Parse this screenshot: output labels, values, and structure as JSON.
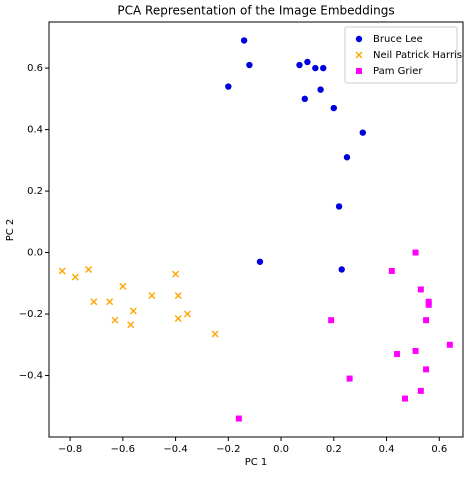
{
  "chart_data": {
    "type": "scatter",
    "title": "PCA Representation of the Image Embeddings",
    "x_label": "PC 1",
    "y_label": "PC 2",
    "xlim": [
      -0.88,
      0.69
    ],
    "ylim": [
      -0.6,
      0.75
    ],
    "xticks": [
      {
        "value": -0.8,
        "label": "−0.8"
      },
      {
        "value": -0.6,
        "label": "−0.6"
      },
      {
        "value": -0.4,
        "label": "−0.4"
      },
      {
        "value": -0.2,
        "label": "−0.2"
      },
      {
        "value": 0,
        "label": "0.0"
      },
      0.2,
      0.4,
      0.6
    ],
    "yticks": [
      {
        "value": -0.4,
        "label": "−0.4"
      },
      {
        "value": -0.2,
        "label": "−0.2"
      },
      {
        "value": 0,
        "label": "0.0"
      },
      0.2,
      0.4,
      0.6
    ],
    "legend": "upper right",
    "series": [
      {
        "name": "Bruce Lee",
        "color": "#0000dd",
        "marker": "circle",
        "x": [
          -0.14,
          -0.12,
          -0.2,
          0.07,
          0.1,
          0.13,
          0.16,
          0.15,
          0.09,
          0.2,
          0.31,
          0.25,
          0.22,
          -0.08,
          0.23
        ],
        "values": [
          0.69,
          0.61,
          0.54,
          0.61,
          0.62,
          0.6,
          0.6,
          0.53,
          0.5,
          0.47,
          0.39,
          0.31,
          0.15,
          -0.03,
          -0.055
        ]
      },
      {
        "name": "Neil Patrick Harris",
        "color": "#ffa500",
        "marker": "x",
        "x": [
          -0.83,
          -0.78,
          -0.73,
          -0.6,
          -0.71,
          -0.65,
          -0.63,
          -0.56,
          -0.57,
          -0.49,
          -0.4,
          -0.39,
          -0.39,
          -0.355,
          -0.25
        ],
        "values": [
          -0.06,
          -0.08,
          -0.055,
          -0.11,
          -0.16,
          -0.16,
          -0.22,
          -0.19,
          -0.235,
          -0.14,
          -0.07,
          -0.14,
          -0.215,
          -0.2,
          -0.265
        ]
      },
      {
        "name": "Pam Grier",
        "color": "#ff00ff",
        "marker": "square",
        "x": [
          0.51,
          0.42,
          0.53,
          0.56,
          0.56,
          0.19,
          0.55,
          0.64,
          0.51,
          0.44,
          0.55,
          0.26,
          0.53,
          0.47,
          -0.16
        ],
        "values": [
          0.0,
          -0.06,
          -0.12,
          -0.16,
          -0.17,
          -0.22,
          -0.22,
          -0.3,
          -0.32,
          -0.33,
          -0.38,
          -0.41,
          -0.45,
          -0.475,
          -0.54
        ]
      }
    ]
  }
}
